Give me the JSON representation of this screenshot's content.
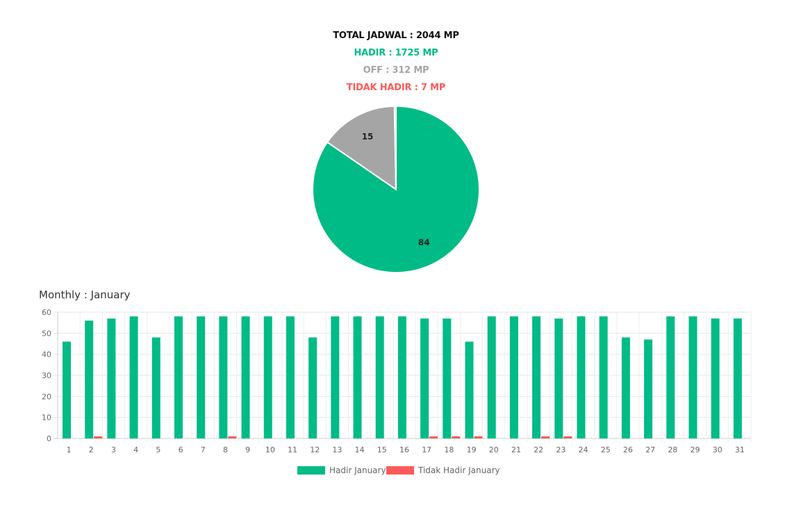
{
  "summary": {
    "total": "TOTAL JADWAL : 2044 MP",
    "hadir": "HADIR : 1725 MP",
    "off": "OFF : 312 MP",
    "tidak_hadir": "TIDAK HADIR : 7 MP"
  },
  "colors": {
    "hadir": "#00bb86",
    "off": "#a5a5a5",
    "tidak_hadir": "#ff5a5a",
    "total": "#111111"
  },
  "monthly_title": "Monthly : January",
  "chart_data": [
    {
      "type": "pie",
      "slices": [
        {
          "label": "Hadir",
          "value": 84,
          "color": "#00bb86"
        },
        {
          "label": "Off",
          "value": 15,
          "color": "#a5a5a5"
        },
        {
          "label": "Tidak Hadir",
          "value": 0.3,
          "color": "#ff5a5a"
        }
      ],
      "data_labels": [
        "84",
        "15",
        ""
      ]
    },
    {
      "type": "bar",
      "categories": [
        "1",
        "2",
        "3",
        "4",
        "5",
        "6",
        "7",
        "8",
        "9",
        "10",
        "11",
        "12",
        "13",
        "14",
        "15",
        "16",
        "17",
        "18",
        "19",
        "20",
        "21",
        "22",
        "23",
        "24",
        "25",
        "26",
        "27",
        "28",
        "29",
        "30",
        "31"
      ],
      "series": [
        {
          "name": "Hadir January",
          "color": "#00bb86",
          "values": [
            46,
            56,
            57,
            58,
            48,
            58,
            58,
            58,
            58,
            58,
            58,
            48,
            58,
            58,
            58,
            58,
            57,
            57,
            46,
            58,
            58,
            58,
            57,
            58,
            58,
            48,
            47,
            58,
            58,
            57,
            57
          ]
        },
        {
          "name": "Tidak Hadir January",
          "color": "#ff5a5a",
          "values": [
            0,
            1,
            0,
            0,
            0,
            0,
            0,
            1,
            0,
            0,
            0,
            0,
            0,
            0,
            0,
            0,
            1,
            1,
            1,
            0,
            0,
            1,
            1,
            0,
            0,
            0,
            0,
            0,
            0,
            0,
            0
          ]
        }
      ],
      "yticks": [
        0,
        10,
        20,
        30,
        40,
        50,
        60
      ],
      "ylim": [
        0,
        60
      ],
      "grid": true,
      "legend_position": "bottom"
    }
  ]
}
